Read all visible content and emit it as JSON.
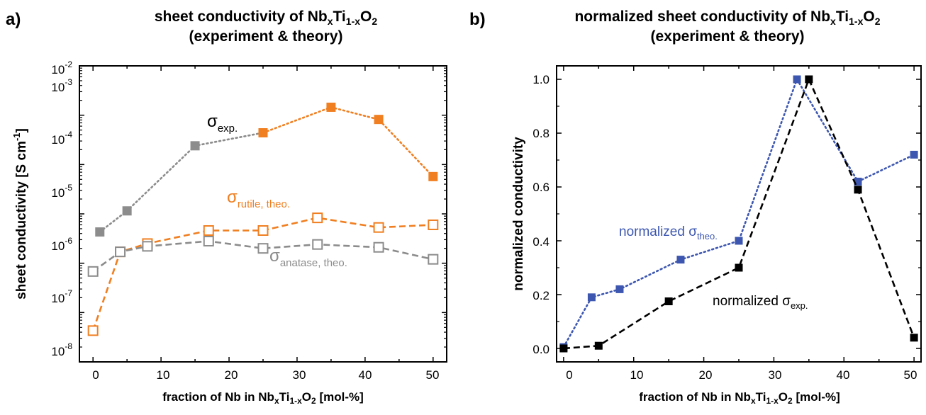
{
  "chart_data": [
    {
      "panel_label": "a)",
      "type": "scatter",
      "title_line1": {
        "base": "sheet conductivity of Nb",
        "s1": "x",
        "mid": "Ti",
        "s2": "1-x",
        "end": "O",
        "s3": "2"
      },
      "title_line2": "(experiment & theory)",
      "xlabel": {
        "base": "fraction of Nb in Nb",
        "s1": "x",
        "mid": "Ti",
        "s2": "1-x",
        "end": "O",
        "s3": "2",
        "tail": " [mol-%]"
      },
      "ylabel": {
        "base": "sheet conductivity [S cm",
        "sup": "-1",
        "tail": "]"
      },
      "xlim": [
        -2,
        52
      ],
      "ylim": [
        1e-08,
        0.01
      ],
      "yscale": "log",
      "x_ticks": [
        "0",
        "10",
        "20",
        "30",
        "40",
        "50"
      ],
      "y_ticks": [
        {
          "base": "10",
          "exp": "-8"
        },
        {
          "base": "10",
          "exp": "-7"
        },
        {
          "base": "10",
          "exp": "-6"
        },
        {
          "base": "10",
          "exp": "-5"
        },
        {
          "base": "10",
          "exp": "-4"
        },
        {
          "base": "10",
          "exp": "-3"
        },
        {
          "base": "10",
          "exp": "-2"
        }
      ],
      "series": [
        {
          "color": "#8c8c8c",
          "line": "dotted",
          "marker": "filled-square",
          "x": [
            1,
            5,
            15,
            25
          ],
          "y": [
            4.3e-06,
            1.15e-05,
            0.00024,
            0.00044
          ]
        },
        {
          "color": "#f07f21",
          "line": "dotted",
          "marker": "filled-square",
          "x": [
            25,
            35,
            42,
            50
          ],
          "y": [
            0.00044,
            0.00145,
            0.00082,
            5.7e-05
          ]
        },
        {
          "color": "#f07f21",
          "line": "dashed",
          "marker": "open-square",
          "x": [
            0,
            4,
            8,
            17,
            25,
            33,
            42,
            50
          ],
          "y": [
            4.3e-08,
            1.7e-06,
            2.5e-06,
            4.6e-06,
            4.6e-06,
            8.3e-06,
            5.3e-06,
            6e-06
          ]
        },
        {
          "color": "#8c8c8c",
          "line": "dashed",
          "marker": "open-square",
          "x": [
            0,
            4,
            8,
            17,
            25,
            33,
            42,
            50
          ],
          "y": [
            6.8e-07,
            1.7e-06,
            2.2e-06,
            2.8e-06,
            2e-06,
            2.4e-06,
            2.1e-06,
            1.2e-06
          ]
        }
      ],
      "annotations": [
        {
          "base": "σ",
          "sub": "exp.",
          "color": "#000000"
        },
        {
          "base": "σ",
          "sub": "rutile, theo.",
          "color": "#f07f21"
        },
        {
          "base": "σ",
          "sub": "anatase, theo.",
          "color": "#8c8c8c"
        }
      ]
    },
    {
      "panel_label": "b)",
      "type": "line",
      "title_line1": {
        "base": "normalized sheet conductivity of Nb",
        "s1": "x",
        "mid": "Ti",
        "s2": "1-x",
        "end": "O",
        "s3": "2"
      },
      "title_line2": "(experiment & theory)",
      "xlabel": {
        "base": "fraction of Nb in Nb",
        "s1": "x",
        "mid": "Ti",
        "s2": "1-x",
        "end": "O",
        "s3": "2",
        "tail": " [mol-%]"
      },
      "ylabel": "normalized conductivity",
      "xlim": [
        -1,
        51
      ],
      "ylim": [
        -0.05,
        1.05
      ],
      "x_ticks": [
        "0",
        "10",
        "20",
        "30",
        "40",
        "50"
      ],
      "y_ticks": [
        "0.0",
        "0.2",
        "0.4",
        "0.6",
        "0.8",
        "1.0"
      ],
      "series": [
        {
          "color": "#3d57b0",
          "line": "dotted",
          "marker": "filled-square",
          "x": [
            0,
            4,
            8,
            16.7,
            25,
            33.3,
            42,
            50
          ],
          "y": [
            0.005,
            0.19,
            0.22,
            0.33,
            0.4,
            1.0,
            0.62,
            0.72
          ]
        },
        {
          "color": "#000000",
          "line": "dashed",
          "marker": "filled-square",
          "x": [
            0,
            5,
            15,
            25,
            35,
            42,
            50
          ],
          "y": [
            0.0,
            0.01,
            0.175,
            0.3,
            1.0,
            0.59,
            0.04
          ]
        }
      ],
      "annotations": [
        {
          "base": "normalized σ",
          "sub": "theo.",
          "color": "#3d57b0"
        },
        {
          "base": "normalized σ",
          "sub": "exp.",
          "color": "#000000"
        }
      ]
    }
  ]
}
